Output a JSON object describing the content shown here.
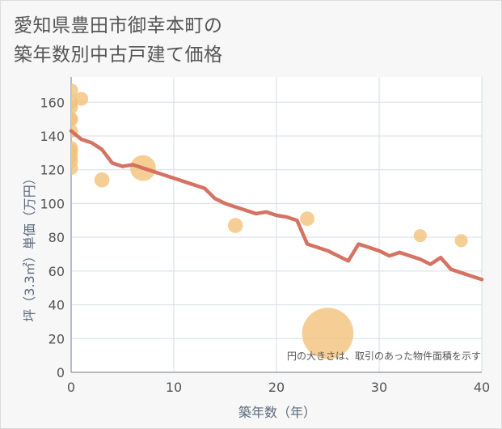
{
  "title_line1": "愛知県豊田市御幸本町の",
  "title_line2": "築年数別中古戸建て価格",
  "chart_data": {
    "type": "scatter",
    "xlabel": "築年数（年）",
    "ylabel": "坪（3.3㎡）単価（万円）",
    "xlim": [
      0,
      40
    ],
    "ylim": [
      0,
      175
    ],
    "xticks": [
      0,
      10,
      20,
      30,
      40
    ],
    "yticks": [
      0,
      20,
      40,
      60,
      80,
      100,
      120,
      140,
      160
    ],
    "grid": true,
    "note": "円の大きさは、取引のあった物件面積を示す",
    "colors": {
      "bubble": "#f3c27a",
      "trend": "#d36b5b"
    },
    "points": [
      {
        "x": 0,
        "y": 167,
        "size": 1
      },
      {
        "x": 0,
        "y": 160,
        "size": 1
      },
      {
        "x": 0,
        "y": 157,
        "size": 1
      },
      {
        "x": 0,
        "y": 150,
        "size": 1
      },
      {
        "x": 0,
        "y": 150,
        "size": 1
      },
      {
        "x": 0,
        "y": 143,
        "size": 1
      },
      {
        "x": 0,
        "y": 133,
        "size": 1
      },
      {
        "x": 0,
        "y": 131,
        "size": 1
      },
      {
        "x": 0,
        "y": 128,
        "size": 1
      },
      {
        "x": 0,
        "y": 125,
        "size": 1
      },
      {
        "x": 0,
        "y": 121,
        "size": 1
      },
      {
        "x": 1,
        "y": 162,
        "size": 1
      },
      {
        "x": 3,
        "y": 114,
        "size": 1.2
      },
      {
        "x": 7,
        "y": 121,
        "size": 3.5
      },
      {
        "x": 16,
        "y": 87,
        "size": 1.2
      },
      {
        "x": 23,
        "y": 91,
        "size": 1.1
      },
      {
        "x": 25,
        "y": 23,
        "size": 14
      },
      {
        "x": 34,
        "y": 81,
        "size": 0.9
      },
      {
        "x": 38,
        "y": 78,
        "size": 0.9
      }
    ],
    "trend": {
      "x": [
        0,
        1,
        2,
        3,
        4,
        5,
        6,
        7,
        8,
        9,
        10,
        11,
        12,
        13,
        14,
        15,
        16,
        17,
        18,
        19,
        20,
        21,
        22,
        23,
        24,
        25,
        26,
        27,
        28,
        29,
        30,
        31,
        32,
        33,
        34,
        35,
        36,
        37,
        38,
        39,
        40
      ],
      "y": [
        143,
        138,
        136,
        132,
        124,
        122,
        123,
        121,
        119,
        117,
        115,
        113,
        111,
        109,
        103,
        100,
        98,
        96,
        94,
        95,
        93,
        92,
        90,
        76,
        74,
        72,
        69,
        66,
        76,
        74,
        72,
        69,
        71,
        69,
        67,
        64,
        68,
        61,
        59,
        57,
        55
      ]
    }
  }
}
